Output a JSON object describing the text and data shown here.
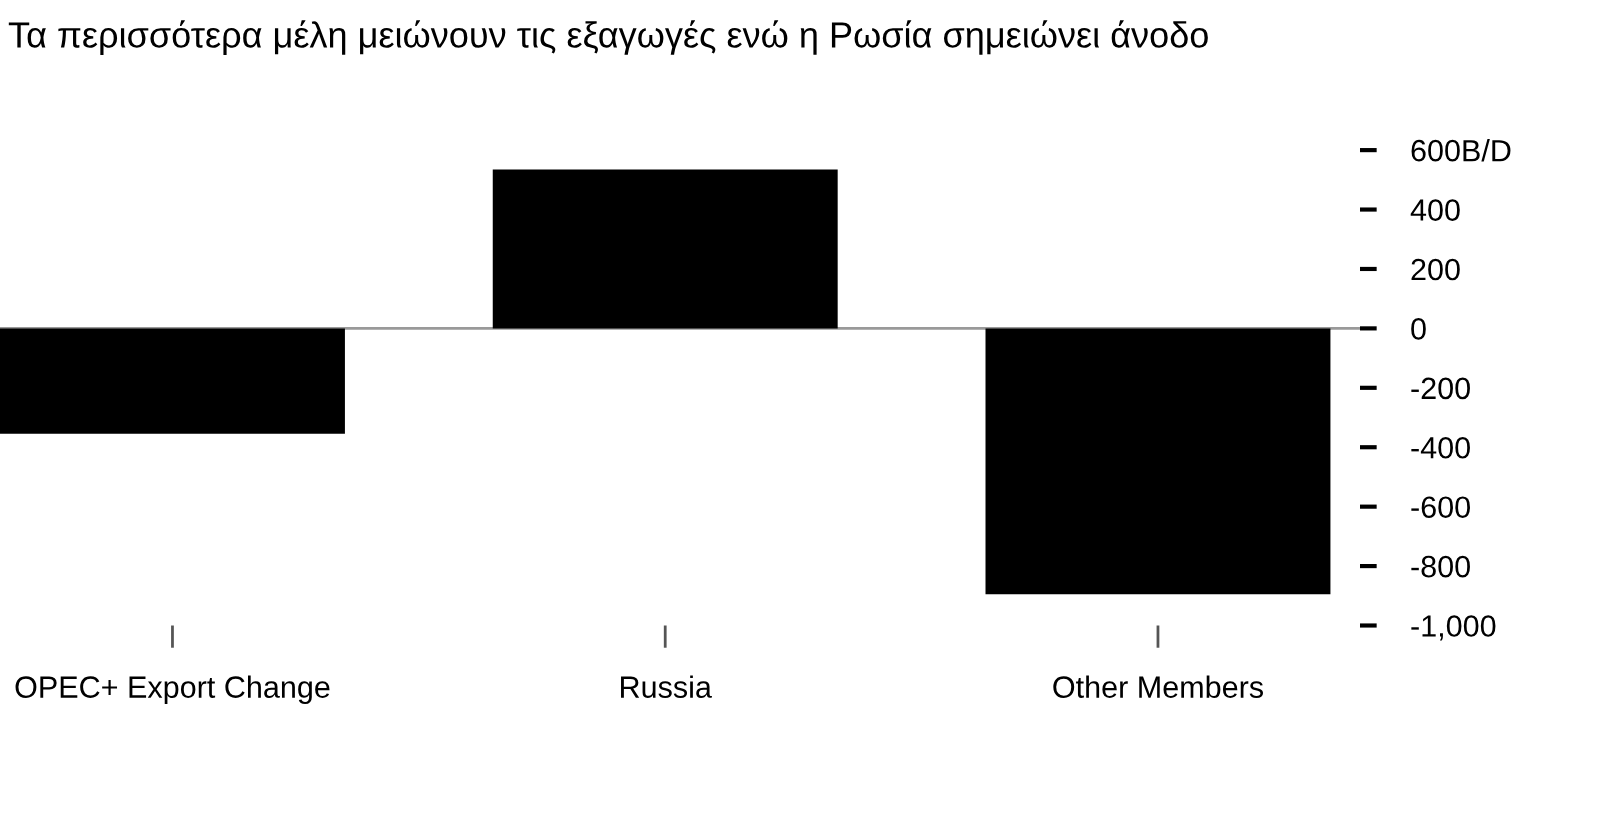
{
  "chart_data": {
    "type": "bar",
    "title": "Τα περισσότερα μέλη μειώνουν τις εξαγωγές ενώ η Ρωσία σημειώνει άνοδο",
    "categories": [
      "OPEC+ Export Change",
      "Russia",
      "Other Members"
    ],
    "values": [
      -355,
      535,
      -895
    ],
    "color": "#000000",
    "ylim": [
      -1000,
      600
    ],
    "yticks": [
      {
        "value": 600,
        "label": "600B/D"
      },
      400,
      200,
      0,
      -200,
      -400,
      -600,
      -800,
      {
        "value": -1000,
        "label": "-1,000"
      }
    ],
    "ref_lines": [
      {
        "axis": "y",
        "value": 0,
        "color": "#999999"
      }
    ],
    "grid": false,
    "legend": false
  }
}
